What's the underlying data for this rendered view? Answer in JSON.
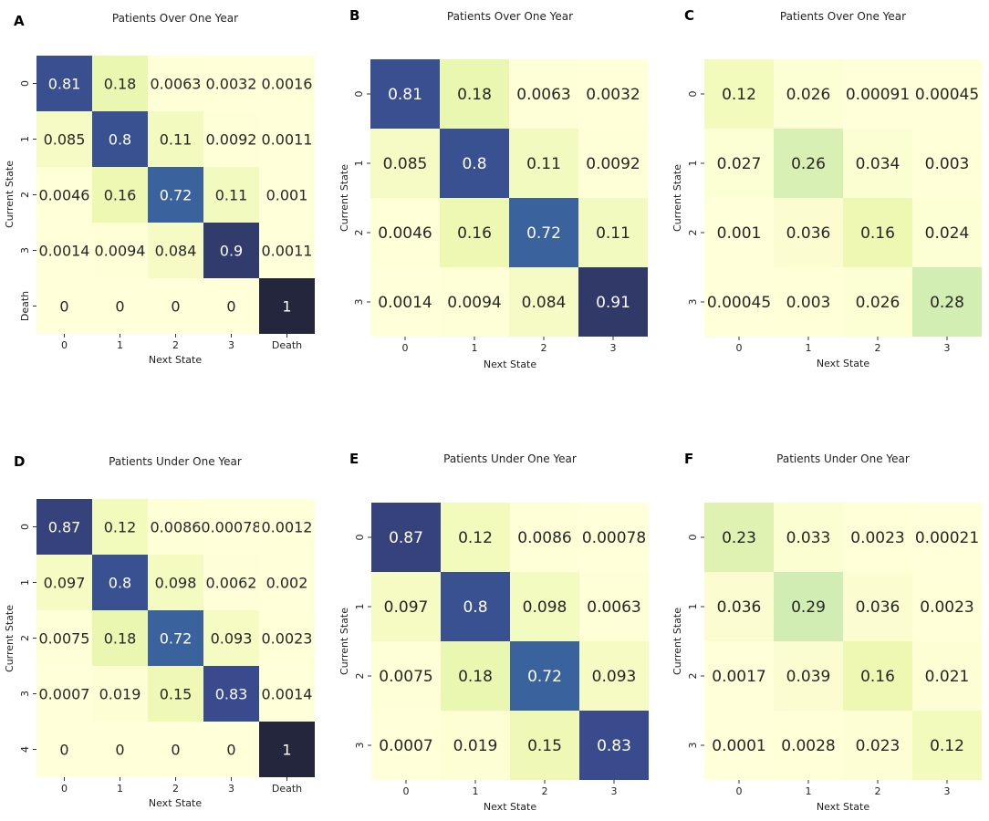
{
  "figure": {
    "colormap": [
      "#ffffd9",
      "#edf8b1",
      "#c7e9b4",
      "#7fcdbb",
      "#3a6ea5",
      "#3a4a8c",
      "#24263e"
    ]
  },
  "chart_data": [
    {
      "type": "heatmap",
      "panel_letter": "A",
      "title": "Patients Over One Year",
      "xlabel": "Next State",
      "ylabel": "Current State",
      "x_tick_labels": [
        "0",
        "1",
        "2",
        "3",
        "Death"
      ],
      "y_tick_labels": [
        "0",
        "1",
        "2",
        "3",
        "Death"
      ],
      "vmin": 0,
      "vmax": 1,
      "values": [
        [
          0.81,
          0.18,
          0.0063,
          0.0032,
          0.0016
        ],
        [
          0.085,
          0.8,
          0.11,
          0.0092,
          0.0011
        ],
        [
          0.0046,
          0.16,
          0.72,
          0.11,
          0.001
        ],
        [
          0.0014,
          0.0094,
          0.084,
          0.9,
          0.0011
        ],
        [
          0,
          0,
          0,
          0,
          1
        ]
      ],
      "labels": [
        [
          "0.81",
          "0.18",
          "0.0063",
          "0.0032",
          "0.0016"
        ],
        [
          "0.085",
          "0.8",
          "0.11",
          "0.0092",
          "0.0011"
        ],
        [
          "0.0046",
          "0.16",
          "0.72",
          "0.11",
          "0.001"
        ],
        [
          "0.0014",
          "0.0094",
          "0.084",
          "0.9",
          "0.0011"
        ],
        [
          "0",
          "0",
          "0",
          "0",
          "1"
        ]
      ]
    },
    {
      "type": "heatmap",
      "panel_letter": "B",
      "title": "Patients Over One Year",
      "xlabel": "Next State",
      "ylabel": "Current State",
      "x_tick_labels": [
        "0",
        "1",
        "2",
        "3"
      ],
      "y_tick_labels": [
        "0",
        "1",
        "2",
        "3"
      ],
      "vmin": 0,
      "vmax": 1,
      "values": [
        [
          0.81,
          0.18,
          0.0063,
          0.0032
        ],
        [
          0.085,
          0.8,
          0.11,
          0.0092
        ],
        [
          0.0046,
          0.16,
          0.72,
          0.11
        ],
        [
          0.0014,
          0.0094,
          0.084,
          0.91
        ]
      ],
      "labels": [
        [
          "0.81",
          "0.18",
          "0.0063",
          "0.0032"
        ],
        [
          "0.085",
          "0.8",
          "0.11",
          "0.0092"
        ],
        [
          "0.0046",
          "0.16",
          "0.72",
          "0.11"
        ],
        [
          "0.0014",
          "0.0094",
          "0.084",
          "0.91"
        ]
      ]
    },
    {
      "type": "heatmap",
      "panel_letter": "C",
      "title": "Patients Over One Year",
      "xlabel": "Next State",
      "ylabel": "Current State",
      "x_tick_labels": [
        "0",
        "1",
        "2",
        "3"
      ],
      "y_tick_labels": [
        "0",
        "1",
        "2",
        "3"
      ],
      "vmin": 0,
      "vmax": 1,
      "values": [
        [
          0.12,
          0.026,
          0.00091,
          0.00045
        ],
        [
          0.027,
          0.26,
          0.034,
          0.003
        ],
        [
          0.001,
          0.036,
          0.16,
          0.024
        ],
        [
          0.00045,
          0.003,
          0.026,
          0.28
        ]
      ],
      "labels": [
        [
          "0.12",
          "0.026",
          "0.00091",
          "0.00045"
        ],
        [
          "0.027",
          "0.26",
          "0.034",
          "0.003"
        ],
        [
          "0.001",
          "0.036",
          "0.16",
          "0.024"
        ],
        [
          "0.00045",
          "0.003",
          "0.026",
          "0.28"
        ]
      ]
    },
    {
      "type": "heatmap",
      "panel_letter": "D",
      "title": "Patients Under One Year",
      "xlabel": "Next State",
      "ylabel": "Current State",
      "x_tick_labels": [
        "0",
        "1",
        "2",
        "3",
        "Death"
      ],
      "y_tick_labels": [
        "0",
        "1",
        "2",
        "3",
        "4"
      ],
      "vmin": 0,
      "vmax": 1,
      "values": [
        [
          0.87,
          0.12,
          0.0086,
          0.00078,
          0.0012
        ],
        [
          0.097,
          0.8,
          0.098,
          0.0062,
          0.002
        ],
        [
          0.0075,
          0.18,
          0.72,
          0.093,
          0.0023
        ],
        [
          0.0007,
          0.019,
          0.15,
          0.83,
          0.0014
        ],
        [
          0,
          0,
          0,
          0,
          1
        ]
      ],
      "labels": [
        [
          "0.87",
          "0.12",
          "0.0086",
          "0.00078",
          "0.0012"
        ],
        [
          "0.097",
          "0.8",
          "0.098",
          "0.0062",
          "0.002"
        ],
        [
          "0.0075",
          "0.18",
          "0.72",
          "0.093",
          "0.0023"
        ],
        [
          "0.0007",
          "0.019",
          "0.15",
          "0.83",
          "0.0014"
        ],
        [
          "0",
          "0",
          "0",
          "0",
          "1"
        ]
      ]
    },
    {
      "type": "heatmap",
      "panel_letter": "E",
      "title": "Patients Under One Year",
      "xlabel": "Next State",
      "ylabel": "Current State",
      "x_tick_labels": [
        "0",
        "1",
        "2",
        "3"
      ],
      "y_tick_labels": [
        "0",
        "1",
        "2",
        "3"
      ],
      "vmin": 0,
      "vmax": 1,
      "values": [
        [
          0.87,
          0.12,
          0.0086,
          0.00078
        ],
        [
          0.097,
          0.8,
          0.098,
          0.0063
        ],
        [
          0.0075,
          0.18,
          0.72,
          0.093
        ],
        [
          0.0007,
          0.019,
          0.15,
          0.83
        ]
      ],
      "labels": [
        [
          "0.87",
          "0.12",
          "0.0086",
          "0.00078"
        ],
        [
          "0.097",
          "0.8",
          "0.098",
          "0.0063"
        ],
        [
          "0.0075",
          "0.18",
          "0.72",
          "0.093"
        ],
        [
          "0.0007",
          "0.019",
          "0.15",
          "0.83"
        ]
      ]
    },
    {
      "type": "heatmap",
      "panel_letter": "F",
      "title": "Patients Under One Year",
      "xlabel": "Next State",
      "ylabel": "Current State",
      "x_tick_labels": [
        "0",
        "1",
        "2",
        "3"
      ],
      "y_tick_labels": [
        "0",
        "1",
        "2",
        "3"
      ],
      "vmin": 0,
      "vmax": 1,
      "values": [
        [
          0.23,
          0.033,
          0.0023,
          0.00021
        ],
        [
          0.036,
          0.29,
          0.036,
          0.0023
        ],
        [
          0.0017,
          0.039,
          0.16,
          0.021
        ],
        [
          0.0001,
          0.0028,
          0.023,
          0.12
        ]
      ],
      "labels": [
        [
          "0.23",
          "0.033",
          "0.0023",
          "0.00021"
        ],
        [
          "0.036",
          "0.29",
          "0.036",
          "0.0023"
        ],
        [
          "0.0017",
          "0.039",
          "0.16",
          "0.021"
        ],
        [
          "0.0001",
          "0.0028",
          "0.023",
          "0.12"
        ]
      ]
    }
  ]
}
